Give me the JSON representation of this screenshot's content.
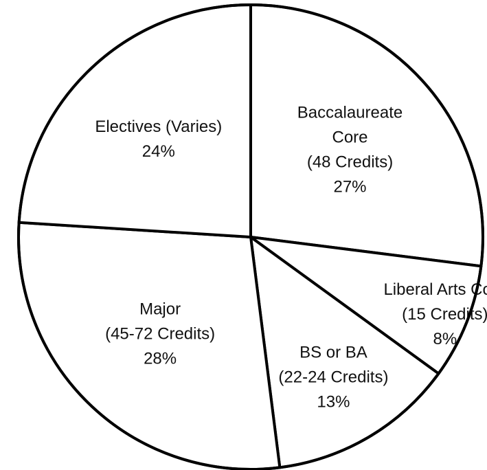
{
  "chart_data": {
    "type": "pie",
    "title": "",
    "start_angle_deg": 0,
    "direction": "clockwise",
    "slice_fill": "#ffffff",
    "slice_stroke": "#000000",
    "text_color": "#111111",
    "slices": [
      {
        "label_lines": [
          "Baccalaureate",
          "Core",
          "(48 Credits)"
        ],
        "percent_label": "27%",
        "value": 27
      },
      {
        "label_lines": [
          "Liberal Arts Core",
          "(15 Credits)"
        ],
        "percent_label": "8%",
        "value": 8
      },
      {
        "label_lines": [
          "BS or BA",
          "(22-24 Credits)"
        ],
        "percent_label": "13%",
        "value": 13
      },
      {
        "label_lines": [
          "Major",
          "(45-72 Credits)"
        ],
        "percent_label": "28%",
        "value": 28
      },
      {
        "label_lines": [
          "Electives (Varies)"
        ],
        "percent_label": "24%",
        "value": 24
      }
    ]
  }
}
